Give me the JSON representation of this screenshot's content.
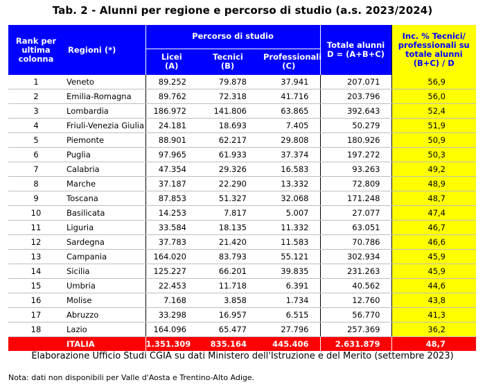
{
  "title": "Tab. 2 - Alunni per regione e percorso di studio (a.s. 2023/2024)",
  "header": {
    "rank": "Rank per ultima colonna",
    "regioni": "Regioni (*)",
    "percorso": "Percorso di studio",
    "licei": "Licei (A)",
    "tecnici": "Tecnici (B)",
    "professionali": "Professionali (C)",
    "totale": "Totale alunni D = (A+B+C)",
    "inc": "Inc. % Tecnici/ professionali su totale alunni (B+C) / D"
  },
  "rows": [
    {
      "rank": "1",
      "region": "Veneto",
      "licei": "89.252",
      "tecnici": "79.878",
      "prof": "37.941",
      "totale": "207.071",
      "inc": "56,9"
    },
    {
      "rank": "2",
      "region": "Emilia-Romagna",
      "licei": "89.762",
      "tecnici": "72.318",
      "prof": "41.716",
      "totale": "203.796",
      "inc": "56,0"
    },
    {
      "rank": "3",
      "region": "Lombardia",
      "licei": "186.972",
      "tecnici": "141.806",
      "prof": "63.865",
      "totale": "392.643",
      "inc": "52,4"
    },
    {
      "rank": "4",
      "region": "Friuli-Venezia Giulia",
      "licei": "24.181",
      "tecnici": "18.693",
      "prof": "7.405",
      "totale": "50.279",
      "inc": "51,9"
    },
    {
      "rank": "5",
      "region": "Piemonte",
      "licei": "88.901",
      "tecnici": "62.217",
      "prof": "29.808",
      "totale": "180.926",
      "inc": "50,9"
    },
    {
      "rank": "6",
      "region": "Puglia",
      "licei": "97.965",
      "tecnici": "61.933",
      "prof": "37.374",
      "totale": "197.272",
      "inc": "50,3"
    },
    {
      "rank": "7",
      "region": "Calabria",
      "licei": "47.354",
      "tecnici": "29.326",
      "prof": "16.583",
      "totale": "93.263",
      "inc": "49,2"
    },
    {
      "rank": "8",
      "region": "Marche",
      "licei": "37.187",
      "tecnici": "22.290",
      "prof": "13.332",
      "totale": "72.809",
      "inc": "48,9"
    },
    {
      "rank": "9",
      "region": "Toscana",
      "licei": "87.853",
      "tecnici": "51.327",
      "prof": "32.068",
      "totale": "171.248",
      "inc": "48,7"
    },
    {
      "rank": "10",
      "region": "Basilicata",
      "licei": "14.253",
      "tecnici": "7.817",
      "prof": "5.007",
      "totale": "27.077",
      "inc": "47,4"
    },
    {
      "rank": "11",
      "region": "Liguria",
      "licei": "33.584",
      "tecnici": "18.135",
      "prof": "11.332",
      "totale": "63.051",
      "inc": "46,7"
    },
    {
      "rank": "12",
      "region": "Sardegna",
      "licei": "37.783",
      "tecnici": "21.420",
      "prof": "11.583",
      "totale": "70.786",
      "inc": "46,6"
    },
    {
      "rank": "13",
      "region": "Campania",
      "licei": "164.020",
      "tecnici": "83.793",
      "prof": "55.121",
      "totale": "302.934",
      "inc": "45,9"
    },
    {
      "rank": "14",
      "region": "Sicilia",
      "licei": "125.227",
      "tecnici": "66.201",
      "prof": "39.835",
      "totale": "231.263",
      "inc": "45,9"
    },
    {
      "rank": "15",
      "region": "Umbria",
      "licei": "22.453",
      "tecnici": "11.718",
      "prof": "6.391",
      "totale": "40.562",
      "inc": "44,6"
    },
    {
      "rank": "16",
      "region": "Molise",
      "licei": "7.168",
      "tecnici": "3.858",
      "prof": "1.734",
      "totale": "12.760",
      "inc": "43,8"
    },
    {
      "rank": "17",
      "region": "Abruzzo",
      "licei": "33.298",
      "tecnici": "16.957",
      "prof": "6.515",
      "totale": "56.770",
      "inc": "41,3"
    },
    {
      "rank": "18",
      "region": "Lazio",
      "licei": "164.096",
      "tecnici": "65.477",
      "prof": "27.796",
      "totale": "257.369",
      "inc": "36,2"
    }
  ],
  "total": {
    "region": "ITALIA",
    "licei": "1.351.309",
    "tecnici": "835.164",
    "prof": "445.406",
    "totale": "2.631.879",
    "inc": "48,7"
  },
  "source": "Elaborazione Ufficio Studi CGIA su dati Ministero dell'Istruzione e del Merito (settembre 2023)",
  "note": "Nota: dati non disponibili per Valle d'Aosta e Trentino-Alto Adige."
}
